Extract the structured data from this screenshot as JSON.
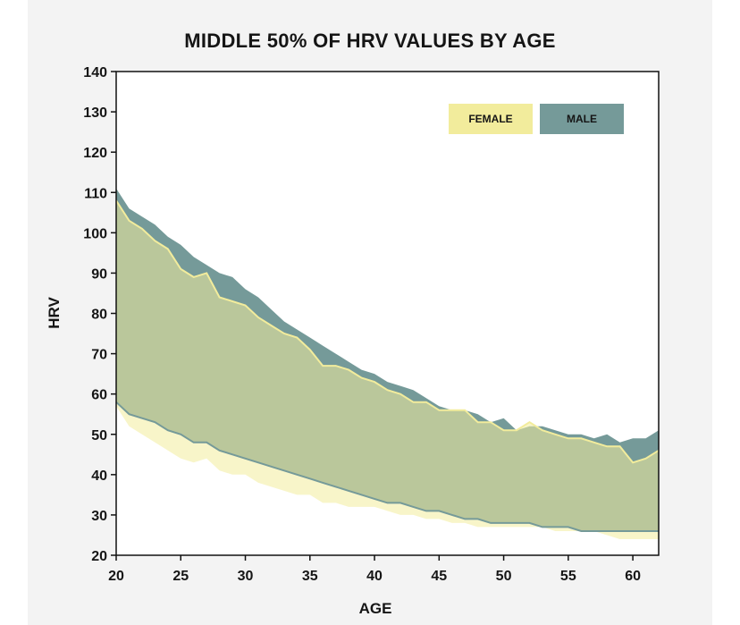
{
  "chart_data": {
    "type": "area",
    "title": "MIDDLE 50% OF HRV VALUES BY AGE",
    "xlabel": "AGE",
    "ylabel": "HRV",
    "xlim": [
      20,
      62
    ],
    "ylim": [
      20,
      140
    ],
    "x_ticks": [
      20,
      25,
      30,
      35,
      40,
      45,
      50,
      55,
      60
    ],
    "y_ticks": [
      20,
      30,
      40,
      50,
      60,
      70,
      80,
      90,
      100,
      110,
      120,
      130,
      140
    ],
    "grid": false,
    "legend_position": "top-right",
    "x": [
      20,
      21,
      22,
      23,
      24,
      25,
      26,
      27,
      28,
      29,
      30,
      31,
      32,
      33,
      34,
      35,
      36,
      37,
      38,
      39,
      40,
      41,
      42,
      43,
      44,
      45,
      46,
      47,
      48,
      49,
      50,
      51,
      52,
      53,
      54,
      55,
      56,
      57,
      58,
      59,
      60,
      61,
      62
    ],
    "series": [
      {
        "name": "FEMALE",
        "color": "#f2ec9c",
        "upper": [
          108,
          103,
          101,
          98,
          96,
          91,
          89,
          90,
          84,
          83,
          82,
          79,
          77,
          75,
          74,
          71,
          67,
          67,
          66,
          64,
          63,
          61,
          60,
          58,
          58,
          56,
          56,
          56,
          53,
          53,
          51,
          51,
          53,
          51,
          50,
          49,
          49,
          48,
          47,
          47,
          43,
          44,
          46
        ],
        "lower": [
          57,
          52,
          50,
          48,
          46,
          44,
          43,
          44,
          41,
          40,
          40,
          38,
          37,
          36,
          35,
          35,
          33,
          33,
          32,
          32,
          32,
          31,
          30,
          30,
          29,
          29,
          28,
          28,
          27,
          27,
          27,
          27,
          27,
          27,
          26,
          26,
          26,
          26,
          25,
          24,
          24,
          24,
          24
        ]
      },
      {
        "name": "MALE",
        "color": "#759a99",
        "upper": [
          111,
          106,
          104,
          102,
          99,
          97,
          94,
          92,
          90,
          89,
          86,
          84,
          81,
          78,
          76,
          74,
          72,
          70,
          68,
          66,
          65,
          63,
          62,
          61,
          59,
          57,
          56,
          56,
          55,
          53,
          54,
          51,
          52,
          52,
          51,
          50,
          50,
          49,
          50,
          48,
          49,
          49,
          51
        ],
        "lower": [
          58,
          55,
          54,
          53,
          51,
          50,
          48,
          48,
          46,
          45,
          44,
          43,
          42,
          41,
          40,
          39,
          38,
          37,
          36,
          35,
          34,
          33,
          33,
          32,
          31,
          31,
          30,
          29,
          29,
          28,
          28,
          28,
          28,
          27,
          27,
          27,
          26,
          26,
          26,
          26,
          26,
          26,
          26
        ]
      }
    ]
  }
}
